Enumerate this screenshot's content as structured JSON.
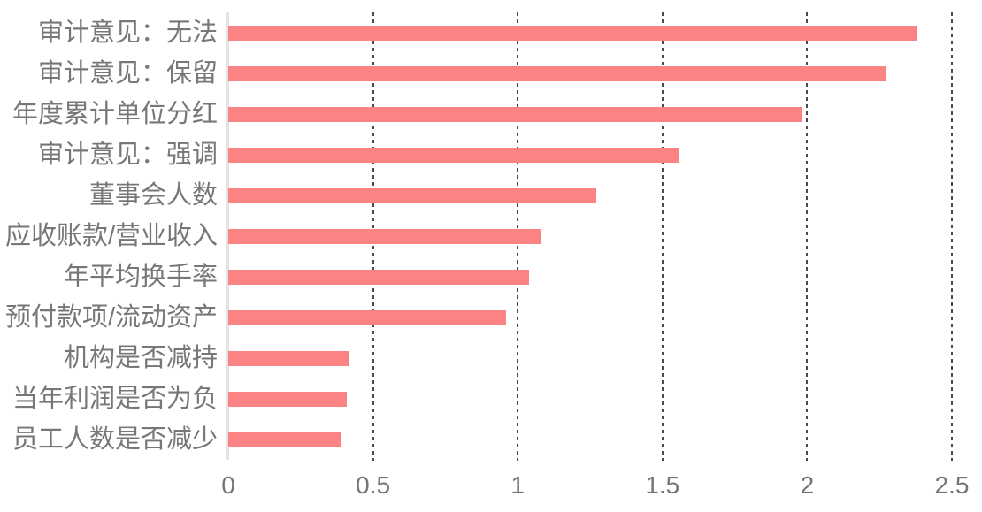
{
  "chart_data": {
    "type": "bar",
    "orientation": "horizontal",
    "title": "",
    "xlabel": "",
    "ylabel": "",
    "categories": [
      "审计意见：无法",
      "审计意见：保留",
      "年度累计单位分红",
      "审计意见：强调",
      "董事会人数",
      "应收账款/营业收入",
      "年平均换手率",
      "预付款项/流动资产",
      "机构是否减持",
      "当年利润是否为负",
      "员工人数是否减少"
    ],
    "values": [
      2.38,
      2.27,
      1.98,
      1.56,
      1.27,
      1.08,
      1.04,
      0.96,
      0.42,
      0.41,
      0.39
    ],
    "xlim": [
      0,
      2.5
    ],
    "xtick_labels": [
      "0",
      "0.5",
      "1",
      "1.5",
      "2",
      "2.5"
    ],
    "grid": "vertical-dashed-at-ticks",
    "legend": "none",
    "colors": {
      "bar": "#fb8383",
      "axis_line": "#e3e3e3",
      "gridline": "#4a4a4a",
      "category_text": "#777777",
      "tick_text": "#757575",
      "background": "#ffffff"
    }
  }
}
